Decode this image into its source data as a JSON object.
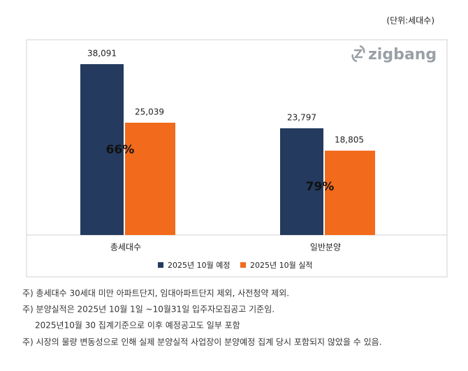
{
  "unit": "(단위:세대수)",
  "logo": "zigbang",
  "chart_data": {
    "type": "bar",
    "categories": [
      "총세대수",
      "일반분양"
    ],
    "series": [
      {
        "name": "2025년 10월 예정",
        "color": "#243a5e",
        "values": [
          38091,
          23797
        ],
        "value_labels": [
          "38,091",
          "23,797"
        ]
      },
      {
        "name": "2025년 10월 실적",
        "color": "#f26a1b",
        "values": [
          25039,
          18805
        ],
        "value_labels": [
          "25,039",
          "18,805"
        ]
      }
    ],
    "annotations": [
      "66%",
      "79%"
    ]
  },
  "notes": [
    "주) 총세대수 30세대 미만 아파트단지, 임대아파트단지 제외, 사전청약 제외.",
    "주) 분양실적은 2025년 10월 1일 ~10월31일 입주자모집공고 기준임.",
    "2025년10월 30 집계기준으로 이후 예정공고도 일부 포함",
    "주) 시장의 물량 변동성으로 인해 실제 분양실적 사업장이 분양예정 집계 당시 포함되지 않았을 수 있음."
  ]
}
